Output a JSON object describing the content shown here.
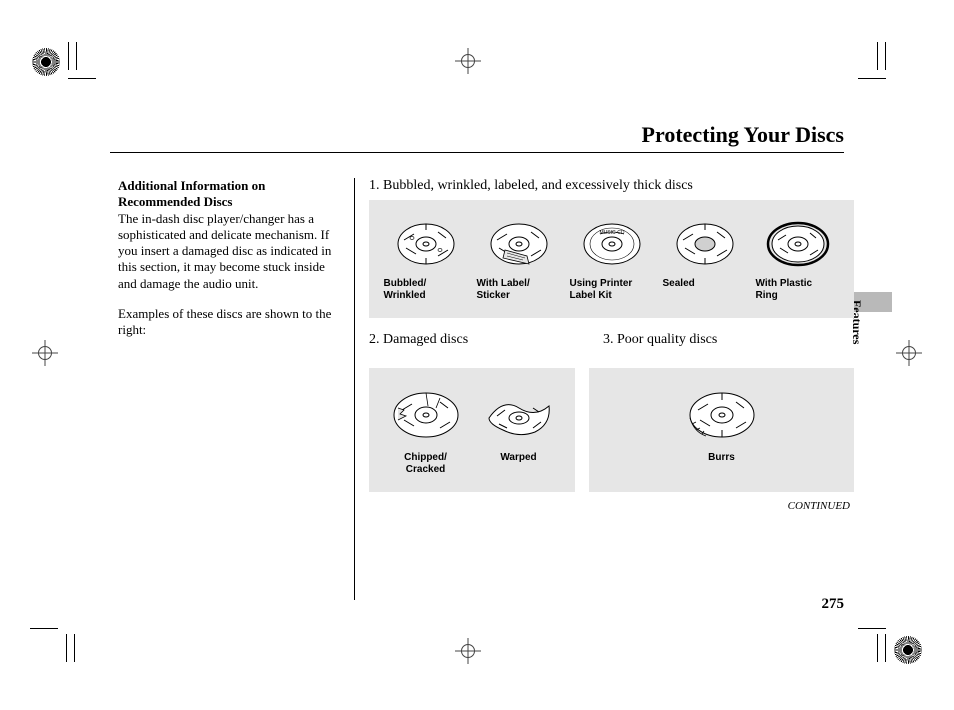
{
  "page": {
    "title": "Protecting Your Discs",
    "number": "275",
    "continued": "CONTINUED",
    "side_tab_label": "Features"
  },
  "left_column": {
    "heading": "Additional Information on Recommended Discs",
    "para1": "The in-dash disc player/changer has a sophisticated and delicate mechanism. If you insert a damaged disc as indicated in this section, it may become stuck inside and damage the audio unit.",
    "para2": "Examples of these discs are shown to the right:"
  },
  "sections": {
    "s1": {
      "label": "1. Bubbled, wrinkled, labeled, and excessively thick discs"
    },
    "s2": {
      "label": "2. Damaged discs"
    },
    "s3": {
      "label": "3. Poor quality discs"
    }
  },
  "discs": {
    "bubbled": {
      "label": "Bubbled/\nWrinkled"
    },
    "label": {
      "label": "With Label/\nSticker"
    },
    "printer": {
      "label": "Using Printer\nLabel Kit",
      "disc_text": "MUSIC-CD"
    },
    "sealed": {
      "label": "Sealed"
    },
    "ring": {
      "label": "With Plastic\nRing"
    },
    "chipped": {
      "label": "Chipped/\nCracked"
    },
    "warped": {
      "label": "Warped"
    },
    "burrs": {
      "label": "Burrs"
    }
  },
  "colors": {
    "panel_bg": "#e6e6e6",
    "tab_bg": "#b9b9b9",
    "text": "#000000",
    "page_bg": "#ffffff"
  }
}
